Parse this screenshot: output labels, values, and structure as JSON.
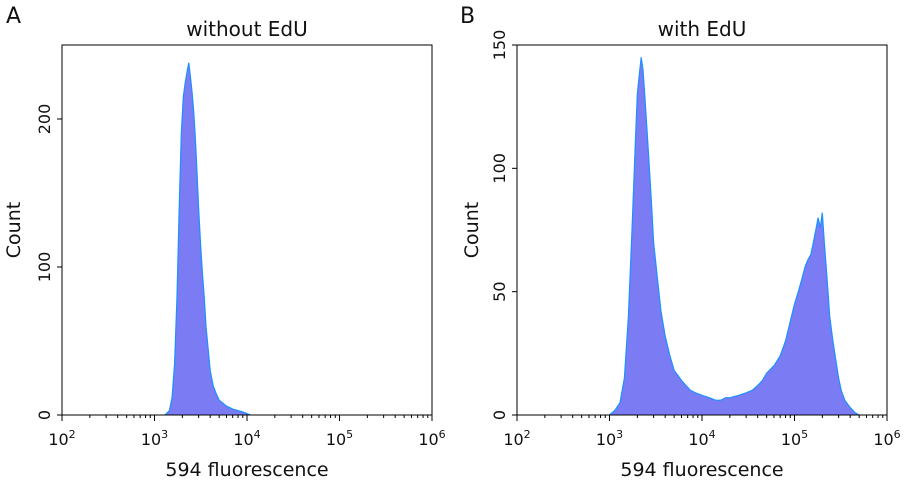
{
  "panels": [
    {
      "letter": "A",
      "title": "without EdU"
    },
    {
      "letter": "B",
      "title": "with EdU"
    }
  ],
  "colors": {
    "fill": "#7b7bf3",
    "line": "#1e90ff",
    "axis": "#000000"
  },
  "chart_data": [
    {
      "type": "area",
      "title": "without EdU",
      "xlabel": "594 fluorescence",
      "ylabel": "Count",
      "xscale": "log",
      "xlim": [
        100,
        1000000
      ],
      "ylim": [
        0,
        250
      ],
      "xticks": [
        100,
        1000,
        10000,
        100000,
        1000000
      ],
      "xtick_labels": [
        {
          "base": "10",
          "exp": "2"
        },
        {
          "base": "10",
          "exp": "3"
        },
        {
          "base": "10",
          "exp": "4"
        },
        {
          "base": "10",
          "exp": "5"
        },
        {
          "base": "10",
          "exp": "6"
        }
      ],
      "yticks": [
        0,
        100,
        200
      ],
      "ytick_labels": [
        "0",
        "100",
        "200"
      ],
      "series": [
        {
          "x": [
            1300,
            1450,
            1550,
            1650,
            1750,
            1850,
            1950,
            2050,
            2150,
            2250,
            2350,
            2450,
            2550,
            2650,
            2750,
            2850,
            3000,
            3150,
            3300,
            3450,
            3600,
            3800,
            4000,
            4300,
            4600,
            5000,
            5500,
            6000,
            7000,
            8000,
            9000,
            10000,
            11000
          ],
          "y": [
            0,
            3,
            12,
            35,
            80,
            140,
            190,
            215,
            225,
            232,
            238,
            228,
            218,
            205,
            190,
            170,
            140,
            115,
            95,
            80,
            60,
            45,
            30,
            20,
            15,
            10,
            8,
            6,
            4,
            3,
            2,
            1,
            0
          ]
        }
      ]
    },
    {
      "type": "area",
      "title": "with EdU",
      "xlabel": "594 fluorescence",
      "ylabel": "Count",
      "xscale": "log",
      "xlim": [
        100,
        1000000
      ],
      "ylim": [
        0,
        150
      ],
      "xticks": [
        100,
        1000,
        10000,
        100000,
        1000000
      ],
      "xtick_labels": [
        {
          "base": "10",
          "exp": "2"
        },
        {
          "base": "10",
          "exp": "3"
        },
        {
          "base": "10",
          "exp": "4"
        },
        {
          "base": "10",
          "exp": "5"
        },
        {
          "base": "10",
          "exp": "6"
        }
      ],
      "yticks": [
        0,
        50,
        100,
        150
      ],
      "ytick_labels": [
        "0",
        "50",
        "100",
        "150"
      ],
      "series": [
        {
          "x": [
            1000,
            1150,
            1300,
            1450,
            1600,
            1750,
            1900,
            2000,
            2100,
            2200,
            2300,
            2400,
            2550,
            2700,
            2850,
            3000,
            3300,
            3600,
            4000,
            4500,
            5000,
            5500,
            6000,
            6700,
            7500,
            8500,
            10000,
            12000,
            14000,
            16000,
            18000,
            20000,
            25000,
            30000,
            35000,
            40000,
            45000,
            50000,
            60000,
            70000,
            80000,
            90000,
            100000,
            110000,
            120000,
            130000,
            140000,
            150000,
            160000,
            170000,
            180000,
            190000,
            200000,
            210000,
            220000,
            230000,
            240000,
            260000,
            280000,
            300000,
            320000,
            350000,
            400000,
            450000,
            500000
          ],
          "y": [
            0,
            2,
            5,
            15,
            40,
            75,
            110,
            130,
            138,
            145,
            140,
            130,
            115,
            100,
            85,
            70,
            55,
            42,
            32,
            24,
            18,
            16,
            14,
            12,
            10,
            9,
            8,
            7,
            6,
            6,
            7,
            7,
            8,
            9,
            10,
            12,
            14,
            17,
            20,
            24,
            30,
            38,
            45,
            50,
            55,
            60,
            63,
            65,
            70,
            75,
            80,
            76,
            82,
            70,
            60,
            50,
            40,
            30,
            22,
            15,
            10,
            6,
            3,
            1,
            0
          ]
        }
      ]
    }
  ]
}
